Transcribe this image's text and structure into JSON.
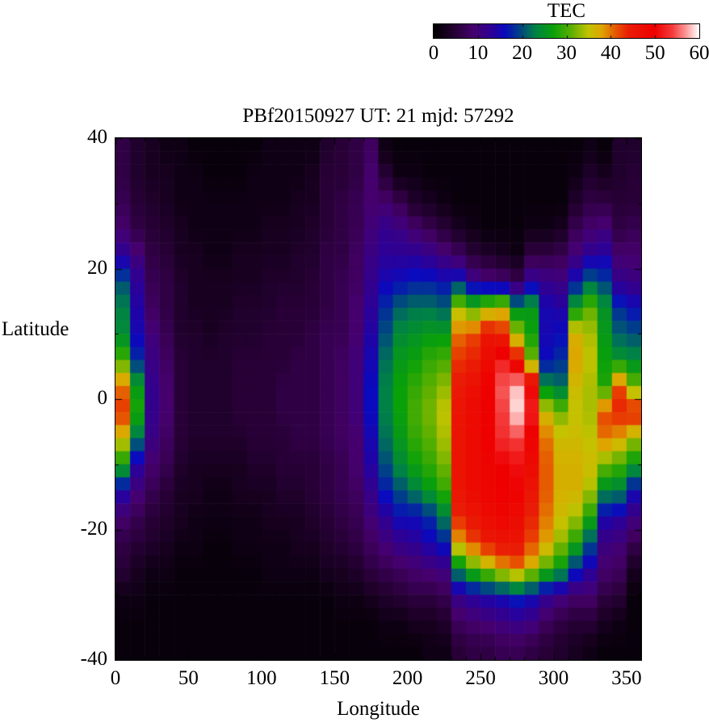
{
  "title": "PBf20150927  UT: 21  mjd: 57292",
  "colorbar": {
    "title": "TEC",
    "tick_values": [
      0,
      10,
      20,
      30,
      40,
      50,
      60
    ],
    "tick_labels": [
      "0",
      "10",
      "20",
      "30",
      "40",
      "50",
      "60"
    ]
  },
  "axes": {
    "xlabel": "Longitude",
    "ylabel": "Latitude",
    "x_tick_values": [
      0,
      50,
      100,
      150,
      200,
      250,
      300,
      350
    ],
    "x_tick_labels": [
      "0",
      "50",
      "100",
      "150",
      "200",
      "250",
      "300",
      "350"
    ],
    "y_tick_values": [
      40,
      20,
      0,
      -20,
      -40
    ],
    "y_tick_labels": [
      "40",
      "20",
      "0",
      "-20",
      "-40"
    ]
  },
  "chart_data": {
    "type": "heatmap",
    "title": "PBf20150927  UT: 21  mjd: 57292",
    "xlabel": "Longitude",
    "ylabel": "Latitude",
    "colorbar_label": "TEC",
    "xlim": [
      0,
      360
    ],
    "ylim": [
      -40,
      40
    ],
    "zlim": [
      0,
      60
    ],
    "grid": false,
    "lon_cell_deg": 10,
    "lat_cell_deg": 4,
    "lon_centers": [
      5,
      15,
      25,
      35,
      45,
      55,
      65,
      75,
      85,
      95,
      105,
      115,
      125,
      135,
      145,
      155,
      165,
      175,
      185,
      195,
      205,
      215,
      225,
      235,
      245,
      255,
      265,
      275,
      285,
      295,
      305,
      315,
      325,
      335,
      345,
      355
    ],
    "lat_centers": [
      38,
      34,
      30,
      26,
      22,
      18,
      14,
      10,
      6,
      2,
      -2,
      -6,
      -10,
      -14,
      -18,
      -22,
      -26,
      -30,
      -34,
      -38
    ],
    "values": [
      [
        6,
        4,
        3,
        2,
        2,
        1,
        1,
        1,
        1,
        1,
        2,
        2,
        2,
        2,
        4,
        5,
        6,
        8,
        2,
        1,
        1,
        1,
        1,
        1,
        1,
        1,
        1,
        1,
        1,
        1,
        1,
        1,
        2,
        1,
        4,
        4
      ],
      [
        6,
        4,
        3,
        3,
        2,
        2,
        1,
        1,
        1,
        2,
        2,
        2,
        2,
        3,
        5,
        5,
        6,
        9,
        5,
        2,
        2,
        1,
        1,
        1,
        1,
        1,
        1,
        1,
        1,
        1,
        1,
        2,
        4,
        3,
        4,
        5
      ],
      [
        7,
        5,
        4,
        3,
        2,
        2,
        2,
        2,
        2,
        2,
        2,
        2,
        3,
        3,
        5,
        6,
        7,
        9,
        9,
        7,
        4,
        3,
        2,
        1,
        1,
        1,
        1,
        1,
        1,
        1,
        1,
        4,
        6,
        6,
        5,
        5
      ],
      [
        9,
        6,
        5,
        4,
        3,
        2,
        2,
        2,
        2,
        2,
        3,
        3,
        3,
        4,
        5,
        6,
        7,
        10,
        12,
        11,
        9,
        7,
        5,
        3,
        2,
        1,
        1,
        1,
        2,
        2,
        3,
        7,
        9,
        10,
        6,
        7
      ],
      [
        13,
        10,
        6,
        5,
        3,
        3,
        2,
        2,
        3,
        3,
        3,
        3,
        4,
        4,
        6,
        6,
        8,
        11,
        13,
        13,
        13,
        12,
        10,
        8,
        5,
        4,
        3,
        2,
        6,
        6,
        7,
        10,
        13,
        14,
        9,
        9
      ],
      [
        20,
        13,
        7,
        6,
        4,
        3,
        3,
        3,
        3,
        3,
        4,
        4,
        4,
        5,
        6,
        7,
        8,
        12,
        15,
        16,
        17,
        17,
        16,
        17,
        12,
        10,
        9,
        7,
        13,
        12,
        11,
        16,
        21,
        19,
        12,
        11
      ],
      [
        23,
        14,
        8,
        6,
        4,
        3,
        3,
        3,
        4,
        4,
        4,
        5,
        5,
        5,
        6,
        7,
        9,
        13,
        18,
        21,
        22,
        22,
        21,
        34,
        30,
        34,
        36,
        24,
        26,
        15,
        14,
        26,
        31,
        25,
        18,
        16
      ],
      [
        24,
        15,
        10,
        7,
        4,
        4,
        3,
        4,
        4,
        4,
        5,
        5,
        5,
        6,
        7,
        7,
        9,
        14,
        20,
        24,
        25,
        26,
        26,
        40,
        42,
        46,
        44,
        34,
        27,
        15,
        16,
        37,
        34,
        26,
        21,
        20
      ],
      [
        30,
        18,
        11,
        8,
        5,
        4,
        4,
        4,
        5,
        5,
        5,
        5,
        6,
        6,
        7,
        8,
        10,
        15,
        22,
        26,
        27,
        29,
        30,
        43,
        44,
        48,
        52,
        46,
        32,
        16,
        18,
        38,
        35,
        27,
        25,
        24
      ],
      [
        40,
        26,
        12,
        9,
        5,
        4,
        4,
        4,
        5,
        5,
        5,
        6,
        6,
        6,
        7,
        8,
        10,
        16,
        23,
        27,
        29,
        31,
        33,
        45,
        47,
        50,
        55,
        58,
        50,
        24,
        22,
        36,
        34,
        28,
        42,
        32
      ],
      [
        43,
        28,
        12,
        9,
        5,
        4,
        4,
        4,
        5,
        5,
        5,
        6,
        6,
        6,
        7,
        8,
        10,
        16,
        23,
        27,
        30,
        32,
        35,
        46,
        48,
        50,
        54,
        59,
        52,
        36,
        32,
        35,
        34,
        42,
        44,
        45
      ],
      [
        36,
        22,
        11,
        8,
        5,
        4,
        4,
        4,
        4,
        5,
        5,
        5,
        6,
        6,
        7,
        8,
        9,
        15,
        22,
        26,
        29,
        31,
        34,
        46,
        48,
        50,
        53,
        54,
        49,
        40,
        36,
        36,
        35,
        40,
        38,
        34
      ],
      [
        27,
        14,
        9,
        7,
        4,
        3,
        3,
        3,
        3,
        4,
        4,
        5,
        5,
        5,
        6,
        7,
        9,
        14,
        20,
        24,
        27,
        29,
        32,
        46,
        48,
        49,
        50,
        51,
        48,
        41,
        37,
        37,
        36,
        32,
        30,
        26
      ],
      [
        15,
        10,
        7,
        5,
        3,
        3,
        2,
        2,
        3,
        3,
        3,
        4,
        4,
        5,
        6,
        7,
        8,
        12,
        17,
        20,
        23,
        26,
        29,
        46,
        48,
        49,
        50,
        50,
        46,
        41,
        37,
        37,
        34,
        24,
        23,
        16
      ],
      [
        9,
        7,
        5,
        4,
        3,
        2,
        2,
        2,
        2,
        2,
        3,
        3,
        3,
        4,
        5,
        6,
        7,
        10,
        13,
        16,
        16,
        18,
        23,
        44,
        46,
        48,
        49,
        48,
        44,
        40,
        36,
        34,
        28,
        15,
        14,
        11
      ],
      [
        6,
        5,
        4,
        3,
        2,
        2,
        1,
        1,
        2,
        2,
        2,
        2,
        3,
        3,
        4,
        5,
        6,
        8,
        10,
        12,
        13,
        15,
        17,
        38,
        42,
        45,
        46,
        46,
        42,
        38,
        33,
        28,
        20,
        11,
        10,
        7
      ],
      [
        5,
        3,
        2,
        2,
        1,
        1,
        1,
        1,
        1,
        1,
        2,
        2,
        2,
        2,
        3,
        3,
        4,
        6,
        7,
        8,
        9,
        10,
        11,
        24,
        30,
        34,
        38,
        40,
        36,
        30,
        26,
        18,
        14,
        9,
        8,
        3
      ],
      [
        2,
        2,
        1,
        1,
        1,
        1,
        1,
        1,
        1,
        1,
        1,
        1,
        1,
        1,
        1,
        2,
        2,
        3,
        4,
        5,
        6,
        6,
        7,
        12,
        14,
        15,
        16,
        18,
        16,
        13,
        11,
        9,
        9,
        6,
        5,
        1
      ],
      [
        1,
        1,
        1,
        1,
        1,
        1,
        1,
        1,
        1,
        1,
        1,
        1,
        1,
        1,
        1,
        1,
        1,
        1,
        2,
        2,
        3,
        3,
        4,
        8,
        9,
        10,
        11,
        12,
        11,
        8,
        6,
        5,
        5,
        3,
        2,
        1
      ],
      [
        1,
        1,
        1,
        1,
        1,
        1,
        1,
        1,
        1,
        1,
        1,
        1,
        1,
        1,
        1,
        1,
        1,
        1,
        1,
        1,
        1,
        2,
        2,
        5,
        6,
        6,
        7,
        7,
        6,
        5,
        4,
        3,
        2,
        1,
        1,
        1
      ]
    ],
    "colormap_stops": [
      [
        0,
        [
          0,
          0,
          0
        ]
      ],
      [
        5,
        [
          40,
          0,
          55
        ]
      ],
      [
        9,
        [
          70,
          0,
          110
        ]
      ],
      [
        13,
        [
          45,
          0,
          150
        ]
      ],
      [
        16,
        [
          10,
          10,
          190
        ]
      ],
      [
        19,
        [
          0,
          60,
          140
        ]
      ],
      [
        23,
        [
          0,
          130,
          70
        ]
      ],
      [
        27,
        [
          10,
          160,
          10
        ]
      ],
      [
        31,
        [
          90,
          175,
          0
        ]
      ],
      [
        35,
        [
          195,
          195,
          0
        ]
      ],
      [
        38,
        [
          222,
          165,
          0
        ]
      ],
      [
        41,
        [
          230,
          90,
          0
        ]
      ],
      [
        44,
        [
          233,
          30,
          5
        ]
      ],
      [
        50,
        [
          238,
          0,
          0
        ]
      ],
      [
        54,
        [
          244,
          60,
          60
        ]
      ],
      [
        57,
        [
          252,
          150,
          150
        ]
      ],
      [
        60,
        [
          255,
          255,
          255
        ]
      ]
    ],
    "legend_position": "top-right-colorbar"
  },
  "layout_colors": {
    "background": "#ffffff",
    "frame": "#000000",
    "text": "#000000"
  }
}
